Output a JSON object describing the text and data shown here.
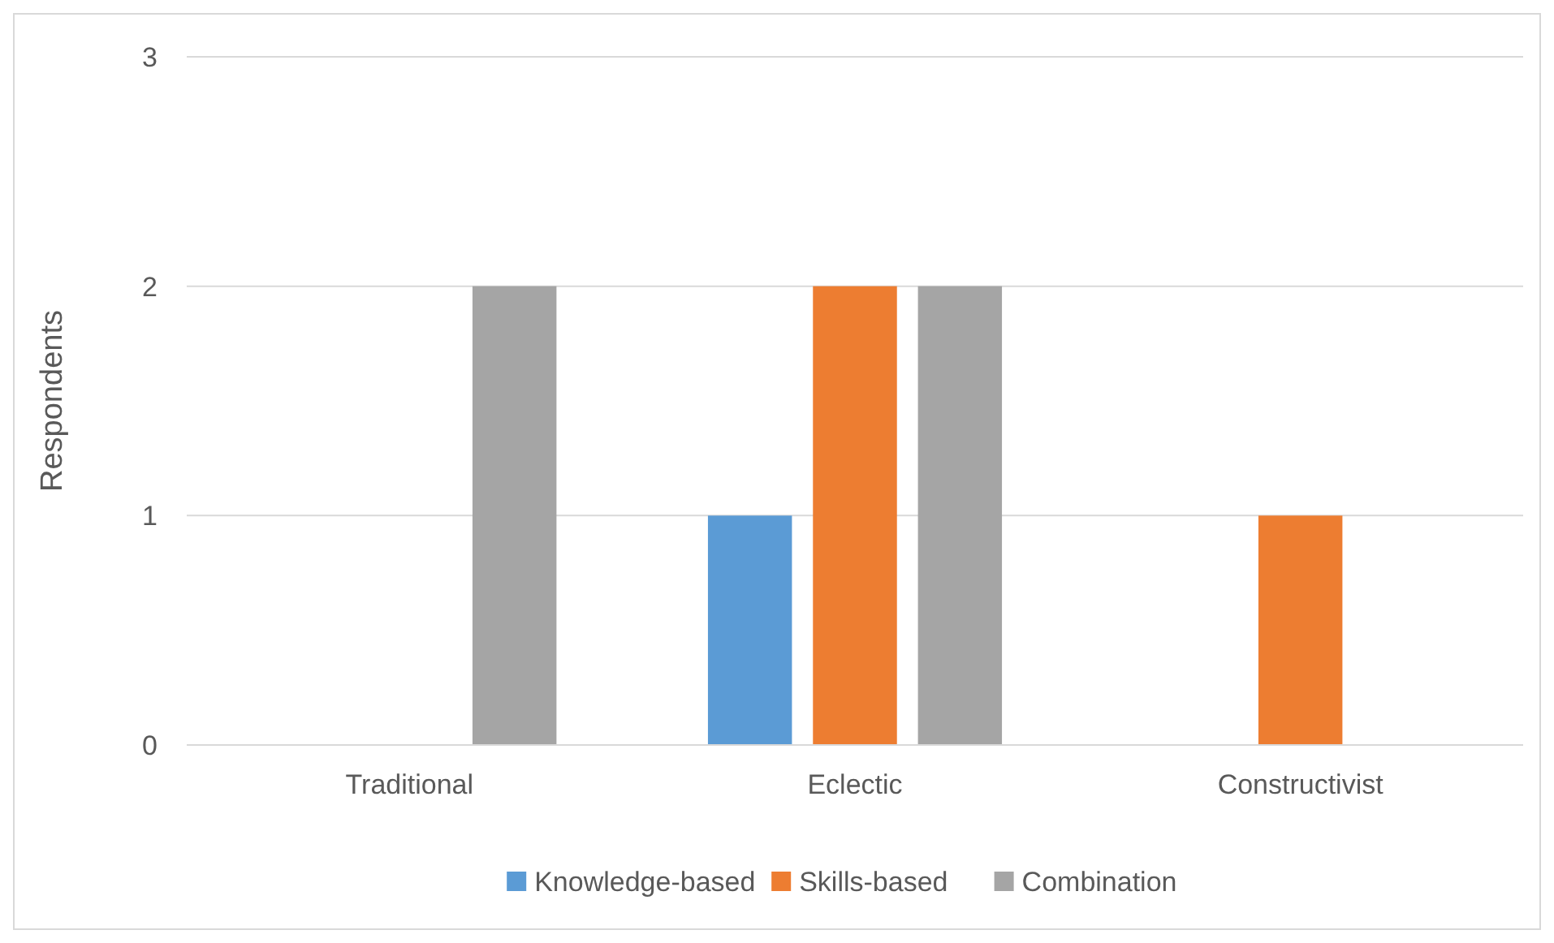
{
  "chart_data": {
    "type": "bar",
    "ylabel": "Respondents",
    "categories": [
      "Traditional",
      "Eclectic",
      "Constructivist"
    ],
    "series": [
      {
        "name": "Knowledge-based",
        "color": "#5b9bd5",
        "values": [
          0,
          1,
          0
        ]
      },
      {
        "name": "Skills-based",
        "color": "#ed7d31",
        "values": [
          0,
          2,
          1
        ]
      },
      {
        "name": "Combination",
        "color": "#a5a5a5",
        "values": [
          2,
          2,
          0
        ]
      }
    ],
    "ylim": [
      0,
      3
    ],
    "yticks": [
      0,
      1,
      2,
      3
    ],
    "grid": "y",
    "legend": "bottom"
  }
}
